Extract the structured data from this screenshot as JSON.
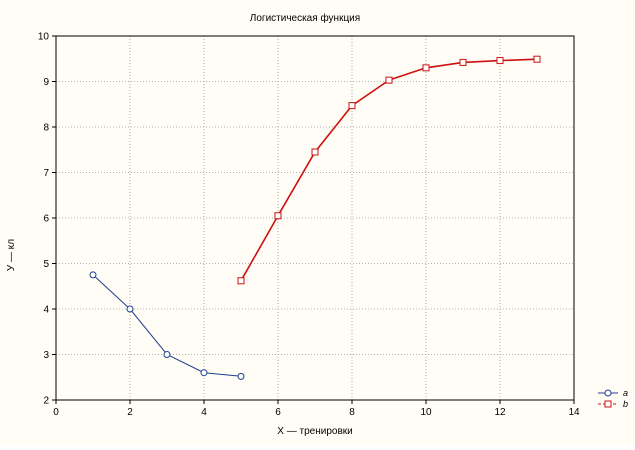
{
  "chart_data": {
    "type": "line",
    "title": "Логистическая функция",
    "xlabel": "X — тренировки",
    "ylabel": "У — кл",
    "xlim": [
      0,
      14
    ],
    "ylim": [
      2,
      10
    ],
    "xticks": [
      0,
      2,
      4,
      6,
      8,
      10,
      12,
      14
    ],
    "yticks": [
      2,
      3,
      4,
      5,
      6,
      7,
      8,
      9,
      10
    ],
    "grid": true,
    "legend_position": "bottom-right",
    "series": [
      {
        "name": "a",
        "color": "#1f3f8f",
        "marker": "circle",
        "x": [
          1,
          2,
          3,
          4,
          5
        ],
        "y": [
          4.75,
          4.0,
          3.0,
          2.6,
          2.52
        ]
      },
      {
        "name": "b",
        "color": "#cc1111",
        "marker": "square",
        "x": [
          5,
          6,
          7,
          8,
          9,
          10,
          11,
          12,
          13
        ],
        "y": [
          4.62,
          6.05,
          7.45,
          8.47,
          9.03,
          9.3,
          9.42,
          9.46,
          9.49
        ]
      }
    ]
  }
}
